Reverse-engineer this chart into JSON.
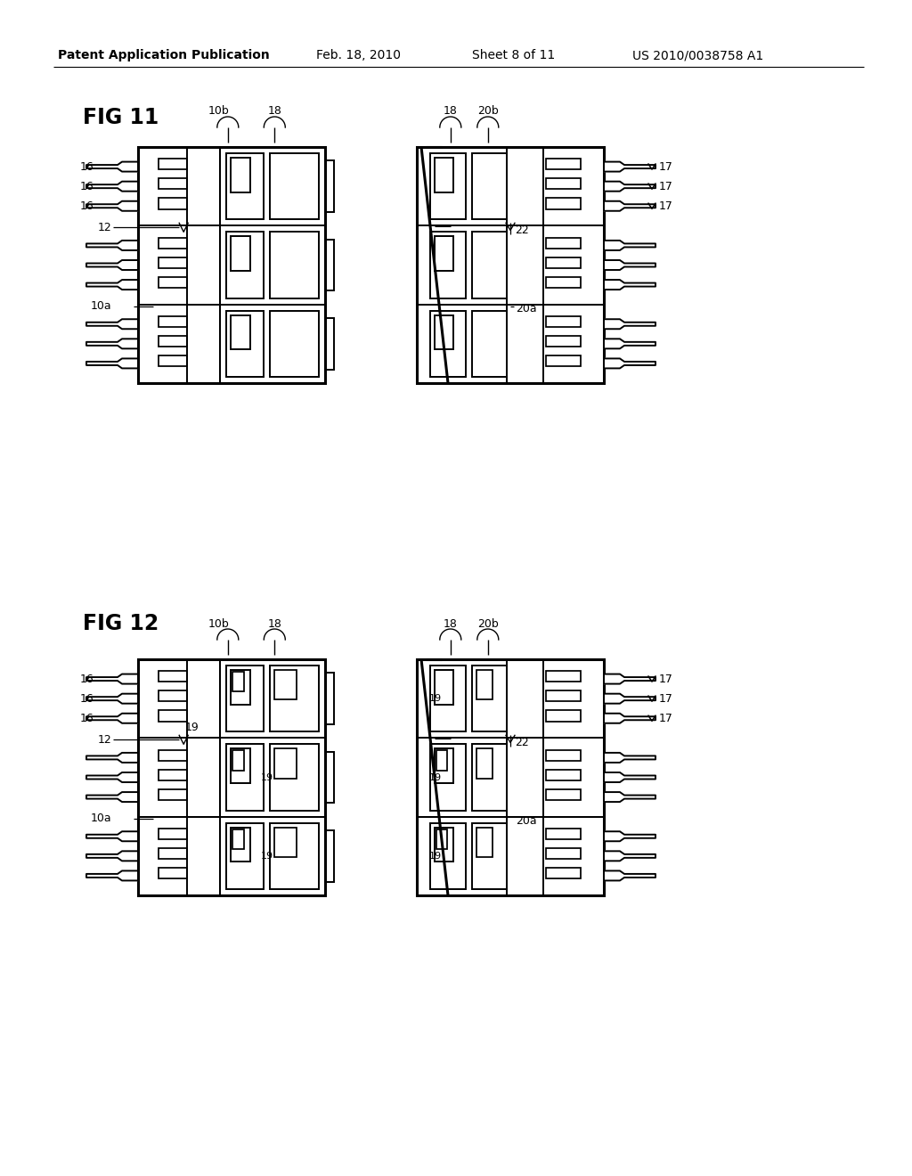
{
  "background_color": "#ffffff",
  "header_text": "Patent Application Publication",
  "header_date": "Feb. 18, 2010",
  "header_sheet": "Sheet 8 of 11",
  "header_patent": "US 2010/0038758 A1",
  "fig11_label": "FIG 11",
  "fig12_label": "FIG 12"
}
